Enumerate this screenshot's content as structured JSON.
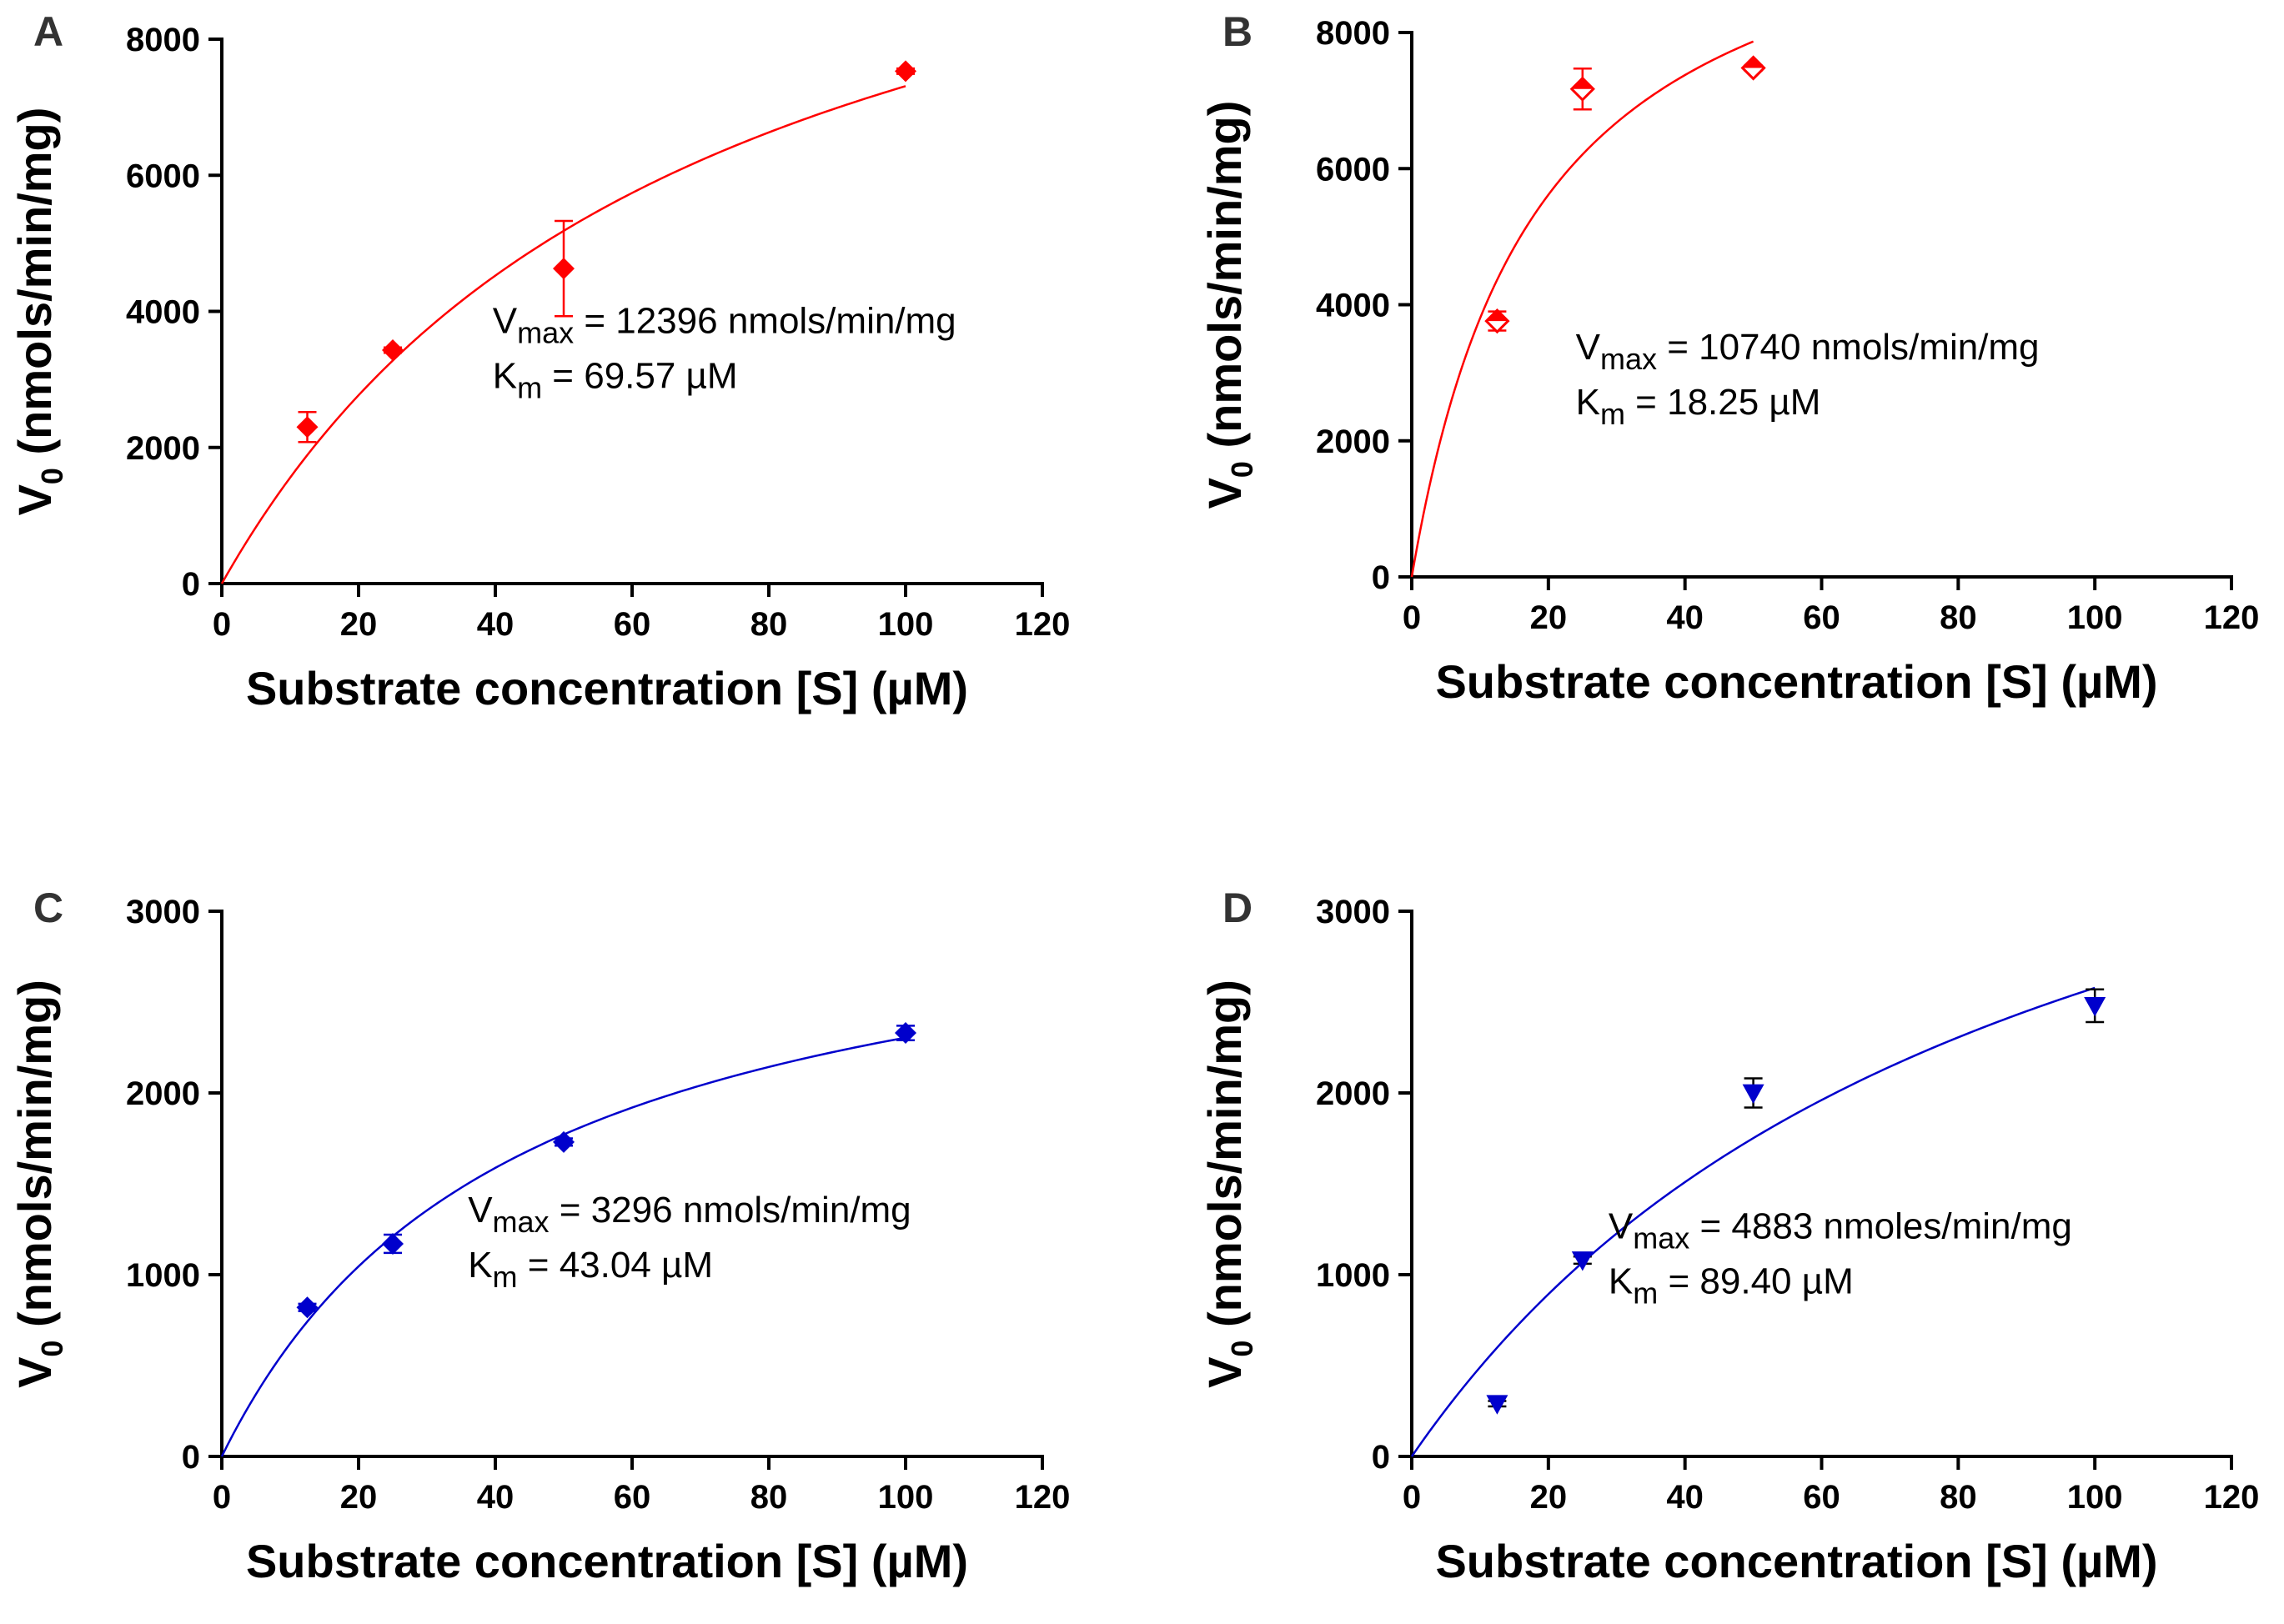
{
  "chart_data": [
    {
      "type": "scatter",
      "panel": "A",
      "color": "#ff0000",
      "marker": "diamond",
      "xlabel": "Substrate concentration [S] (µM)",
      "ylabel_main": "V",
      "ylabel_sub": "0",
      "ylabel_rest": " (nmols/min/mg)",
      "xlim": [
        0,
        120
      ],
      "ylim": [
        0,
        8000
      ],
      "xticks": [
        0,
        20,
        40,
        60,
        80,
        100,
        120
      ],
      "yticks": [
        0,
        2000,
        4000,
        6000,
        8000
      ],
      "x": [
        12.5,
        25,
        50,
        100
      ],
      "y": [
        2300,
        3430,
        4630,
        7530
      ],
      "yerr": [
        220,
        40,
        700,
        40
      ],
      "fit": {
        "model": "michaelis-menten",
        "vmax": 12396,
        "km": 69.57,
        "xmax": 100
      },
      "annotations": {
        "vmax_prefix": "V",
        "vmax_sub": "max",
        "vmax_text": " = 12396 nmols/min/mg",
        "km_prefix": "K",
        "km_sub": "m",
        "km_text": " = 69.57 µM"
      }
    },
    {
      "type": "scatter",
      "panel": "B",
      "color": "#ff0000",
      "marker": "diamond-half",
      "xlabel": "Substrate concentration [S] (µM)",
      "ylabel_main": "V",
      "ylabel_sub": "0",
      "ylabel_rest": " (nmols/min/mg)",
      "xlim": [
        0,
        120
      ],
      "ylim": [
        0,
        8000
      ],
      "xticks": [
        0,
        20,
        40,
        60,
        80,
        100,
        120
      ],
      "yticks": [
        0,
        2000,
        4000,
        6000,
        8000
      ],
      "x": [
        12.5,
        25,
        50
      ],
      "y": [
        3760,
        7170,
        7480
      ],
      "yerr": [
        140,
        300,
        40
      ],
      "fit": {
        "model": "michaelis-menten",
        "vmax": 10740,
        "km": 18.25,
        "xmax": 50
      },
      "annotations": {
        "vmax_prefix": "V",
        "vmax_sub": "max",
        "vmax_text": " = 10740 nmols/min/mg",
        "km_prefix": "K",
        "km_sub": "m",
        "km_text": " = 18.25 µM"
      }
    },
    {
      "type": "scatter",
      "panel": "C",
      "color": "#0000cc",
      "marker": "diamond",
      "xlabel": "Substrate concentration [S] (µM)",
      "ylabel_main": "V",
      "ylabel_sub": "0",
      "ylabel_rest": " (nmols/min/mg)",
      "xlim": [
        0,
        120
      ],
      "ylim": [
        0,
        3000
      ],
      "xticks": [
        0,
        20,
        40,
        60,
        80,
        100,
        120
      ],
      "yticks": [
        0,
        1000,
        2000,
        3000
      ],
      "x": [
        12.5,
        25,
        50,
        100
      ],
      "y": [
        820,
        1170,
        1730,
        2330
      ],
      "yerr": [
        20,
        50,
        20,
        40
      ],
      "fit": {
        "model": "michaelis-menten",
        "vmax": 3296,
        "km": 43.04,
        "xmax": 100
      },
      "annotations": {
        "vmax_prefix": "V",
        "vmax_sub": "max",
        "vmax_text": " = 3296 nmols/min/mg",
        "km_prefix": "K",
        "km_sub": "m",
        "km_text": " = 43.04 µM"
      }
    },
    {
      "type": "scatter",
      "panel": "D",
      "color": "#0000cc",
      "marker": "triangle-down",
      "xlabel": "Substrate concentration [S] (µM)",
      "ylabel_main": "V",
      "ylabel_sub": "0",
      "ylabel_rest": " (nmols/min/mg)",
      "xlim": [
        0,
        120
      ],
      "ylim": [
        0,
        3000
      ],
      "xticks": [
        0,
        20,
        40,
        60,
        80,
        100,
        120
      ],
      "yticks": [
        0,
        1000,
        2000,
        3000
      ],
      "x": [
        12.5,
        25,
        50,
        100
      ],
      "y": [
        290,
        1080,
        2000,
        2480
      ],
      "yerr": [
        15,
        20,
        80,
        90
      ],
      "fit": {
        "model": "michaelis-menten",
        "vmax": 4883,
        "km": 89.4,
        "xmax": 100
      },
      "annotations": {
        "vmax_prefix": "V",
        "vmax_sub": "max",
        "vmax_text": " = 4883 nmoles/min/mg",
        "km_prefix": "K",
        "km_sub": "m",
        "km_text": " = 89.40 µM"
      }
    }
  ]
}
